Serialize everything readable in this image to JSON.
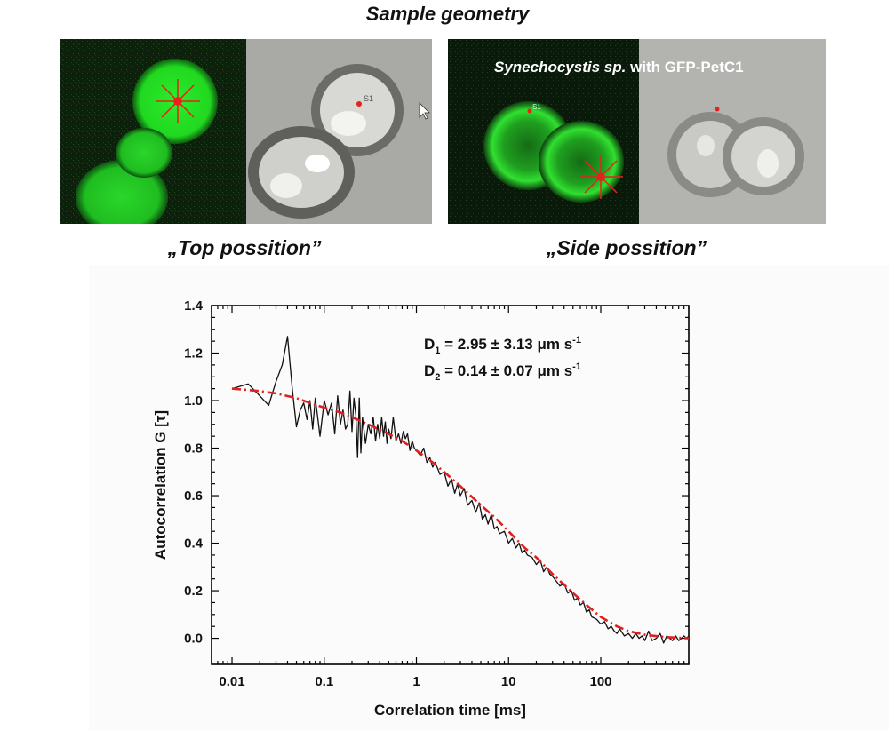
{
  "page": {
    "title": "Sample geometry",
    "caption_top": "„Top possition”",
    "caption_side": "„Side possition”",
    "overlay_species": "Synechocystis sp.",
    "overlay_construct": "with GFP-PetC1",
    "spot_labels": [
      "S1",
      "S1"
    ]
  },
  "colors": {
    "fluorescence": "#22dd22",
    "fluorescence_bg": "#0b1f0b",
    "brightfield_bg": "#a9aaa6",
    "marker": "#e8201c",
    "data_line": "#111111",
    "fit_line": "#e02020"
  },
  "chart_data": {
    "type": "line",
    "title": "",
    "xlabel": "Correlation time [ms]",
    "ylabel": "Autocorrelation G [τ]",
    "xscale": "log",
    "xlim": [
      0.006,
      900
    ],
    "ylim": [
      -0.11,
      1.4
    ],
    "x_ticks": [
      "0.01",
      "0.1",
      "1",
      "10",
      "100"
    ],
    "y_ticks": [
      "0.0",
      "0.2",
      "0.4",
      "0.6",
      "0.8",
      "1.0",
      "1.2",
      "1.4"
    ],
    "grid": false,
    "annotations": [
      {
        "prefix": "D",
        "sub": "1",
        "text": " = 2.95 ± 3.13 μm s",
        "sup": "-1"
      },
      {
        "prefix": "D",
        "sub": "2",
        "text": " = 0.14 ± 0.07 μm s",
        "sup": "-1"
      }
    ],
    "series": [
      {
        "style": "measured",
        "x": [
          0.01,
          0.015,
          0.02,
          0.025,
          0.03,
          0.035,
          0.04,
          0.045,
          0.05,
          0.055,
          0.06,
          0.065,
          0.07,
          0.075,
          0.08,
          0.085,
          0.09,
          0.1,
          0.11,
          0.12,
          0.13,
          0.14,
          0.15,
          0.16,
          0.17,
          0.18,
          0.19,
          0.2,
          0.21,
          0.22,
          0.23,
          0.24,
          0.25,
          0.26,
          0.28,
          0.3,
          0.32,
          0.34,
          0.36,
          0.38,
          0.4,
          0.42,
          0.44,
          0.46,
          0.48,
          0.5,
          0.53,
          0.56,
          0.6,
          0.64,
          0.68,
          0.72,
          0.76,
          0.8,
          0.85,
          0.9,
          0.95,
          1.0,
          1.1,
          1.2,
          1.3,
          1.4,
          1.5,
          1.6,
          1.8,
          2.0,
          2.2,
          2.4,
          2.6,
          2.8,
          3.0,
          3.3,
          3.6,
          4.0,
          4.4,
          4.8,
          5.2,
          5.6,
          6.0,
          6.5,
          7.0,
          7.5,
          8.0,
          9.0,
          10,
          11,
          12,
          13,
          14,
          15,
          16,
          18,
          20,
          22,
          24,
          26,
          28,
          30,
          33,
          36,
          40,
          44,
          48,
          52,
          56,
          60,
          65,
          70,
          75,
          80,
          90,
          100,
          110,
          120,
          130,
          140,
          150,
          160,
          180,
          200,
          220,
          240,
          260,
          280,
          300,
          330,
          360,
          400,
          440,
          480,
          520,
          560,
          600,
          650,
          700,
          750,
          800,
          850,
          900
        ],
        "y": [
          1.05,
          1.07,
          1.02,
          0.98,
          1.08,
          1.15,
          1.27,
          1.05,
          0.89,
          0.96,
          0.99,
          0.92,
          1.0,
          0.88,
          1.01,
          0.93,
          0.85,
          1.0,
          0.94,
          0.99,
          0.86,
          1.02,
          0.9,
          0.96,
          0.88,
          0.9,
          1.04,
          0.87,
          1.01,
          0.94,
          0.76,
          1.01,
          0.78,
          0.93,
          0.82,
          0.9,
          0.86,
          0.93,
          0.83,
          0.9,
          0.84,
          0.93,
          0.85,
          0.91,
          0.82,
          0.88,
          0.84,
          0.93,
          0.83,
          0.86,
          0.82,
          0.87,
          0.84,
          0.86,
          0.79,
          0.83,
          0.8,
          0.79,
          0.77,
          0.8,
          0.74,
          0.76,
          0.72,
          0.74,
          0.69,
          0.7,
          0.64,
          0.67,
          0.61,
          0.65,
          0.6,
          0.63,
          0.56,
          0.58,
          0.53,
          0.57,
          0.5,
          0.52,
          0.48,
          0.52,
          0.46,
          0.47,
          0.44,
          0.45,
          0.4,
          0.42,
          0.38,
          0.4,
          0.36,
          0.37,
          0.35,
          0.34,
          0.31,
          0.33,
          0.28,
          0.3,
          0.27,
          0.26,
          0.24,
          0.22,
          0.23,
          0.19,
          0.2,
          0.16,
          0.17,
          0.14,
          0.15,
          0.11,
          0.12,
          0.09,
          0.08,
          0.06,
          0.07,
          0.04,
          0.05,
          0.03,
          0.02,
          0.04,
          0.01,
          0.02,
          0.0,
          0.02,
          0.0,
          0.01,
          -0.01,
          0.03,
          -0.01,
          0.0,
          0.02,
          -0.02,
          0.01,
          0.0,
          -0.01,
          0.01,
          -0.01,
          0.0,
          0.01,
          0.0,
          0.01
        ]
      },
      {
        "style": "fit",
        "x": [
          0.01,
          0.02,
          0.03,
          0.05,
          0.07,
          0.1,
          0.15,
          0.2,
          0.3,
          0.5,
          0.7,
          1.0,
          1.5,
          2,
          3,
          5,
          7,
          10,
          15,
          20,
          30,
          50,
          70,
          100,
          150,
          200,
          300,
          500,
          700,
          900
        ],
        "y": [
          1.05,
          1.04,
          1.03,
          1.01,
          0.99,
          0.97,
          0.95,
          0.93,
          0.9,
          0.86,
          0.83,
          0.79,
          0.74,
          0.7,
          0.64,
          0.56,
          0.51,
          0.45,
          0.38,
          0.34,
          0.27,
          0.19,
          0.14,
          0.09,
          0.05,
          0.03,
          0.015,
          0.005,
          0.002,
          0.0
        ]
      }
    ]
  }
}
